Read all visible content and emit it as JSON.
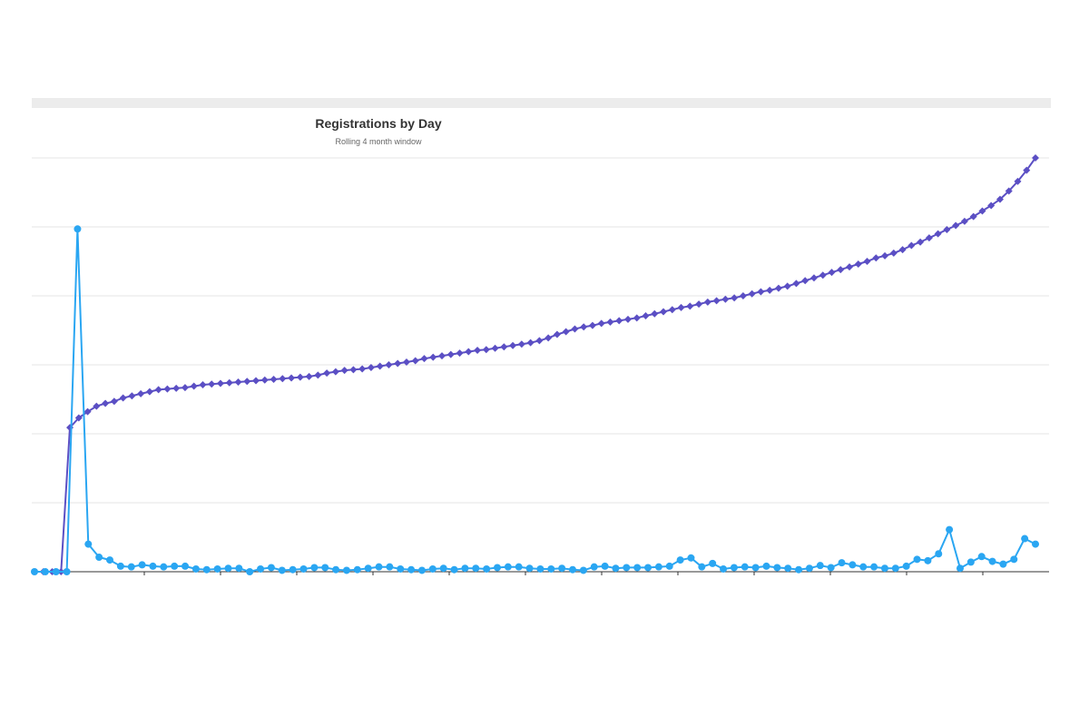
{
  "chart_data": {
    "type": "line",
    "title": "Registrations by Day",
    "subtitle": "Rolling 4 month window",
    "xlabel": "",
    "ylabel": "",
    "ylim": [
      0,
      6
    ],
    "grid": true,
    "legend": "none",
    "series": [
      {
        "color": "#5b4fc4",
        "marker": "diamond",
        "values": [
          0.0,
          0.0,
          0.0,
          0.0,
          2.09,
          2.23,
          2.32,
          2.4,
          2.44,
          2.47,
          2.52,
          2.55,
          2.58,
          2.61,
          2.64,
          2.65,
          2.66,
          2.67,
          2.69,
          2.71,
          2.72,
          2.73,
          2.74,
          2.75,
          2.76,
          2.77,
          2.78,
          2.79,
          2.8,
          2.81,
          2.82,
          2.83,
          2.85,
          2.88,
          2.9,
          2.92,
          2.93,
          2.94,
          2.96,
          2.98,
          3.0,
          3.02,
          3.04,
          3.06,
          3.09,
          3.11,
          3.13,
          3.15,
          3.17,
          3.19,
          3.21,
          3.22,
          3.24,
          3.26,
          3.28,
          3.3,
          3.32,
          3.35,
          3.39,
          3.44,
          3.48,
          3.52,
          3.55,
          3.57,
          3.6,
          3.62,
          3.64,
          3.66,
          3.68,
          3.71,
          3.74,
          3.77,
          3.8,
          3.83,
          3.85,
          3.88,
          3.91,
          3.93,
          3.95,
          3.97,
          4.0,
          4.03,
          4.06,
          4.08,
          4.11,
          4.14,
          4.18,
          4.22,
          4.26,
          4.3,
          4.34,
          4.38,
          4.42,
          4.46,
          4.5,
          4.55,
          4.58,
          4.62,
          4.67,
          4.73,
          4.78,
          4.84,
          4.9,
          4.96,
          5.02,
          5.08,
          5.15,
          5.23,
          5.31,
          5.4,
          5.52,
          5.66,
          5.82,
          6.0
        ]
      },
      {
        "color": "#2aa6f2",
        "marker": "circle",
        "values": [
          0.0,
          0.0,
          0.0,
          0.0,
          4.97,
          0.4,
          0.21,
          0.17,
          0.08,
          0.07,
          0.1,
          0.08,
          0.07,
          0.08,
          0.08,
          0.04,
          0.03,
          0.04,
          0.05,
          0.05,
          0.0,
          0.04,
          0.06,
          0.02,
          0.03,
          0.04,
          0.06,
          0.06,
          0.03,
          0.02,
          0.03,
          0.05,
          0.07,
          0.07,
          0.04,
          0.03,
          0.02,
          0.04,
          0.05,
          0.03,
          0.05,
          0.05,
          0.04,
          0.06,
          0.07,
          0.07,
          0.05,
          0.04,
          0.04,
          0.05,
          0.03,
          0.02,
          0.07,
          0.08,
          0.05,
          0.06,
          0.06,
          0.06,
          0.07,
          0.08,
          0.17,
          0.2,
          0.07,
          0.12,
          0.04,
          0.06,
          0.07,
          0.06,
          0.08,
          0.06,
          0.05,
          0.03,
          0.05,
          0.09,
          0.06,
          0.13,
          0.1,
          0.07,
          0.07,
          0.05,
          0.05,
          0.08,
          0.18,
          0.16,
          0.26,
          0.61,
          0.05,
          0.14,
          0.22,
          0.15,
          0.11,
          0.18,
          0.48,
          0.4
        ]
      }
    ]
  },
  "colors": {
    "series_1": "#5b4fc4",
    "series_2": "#2aa6f2",
    "grid": "#e6e6e6",
    "axis": "#333333",
    "band": "#ececec"
  }
}
